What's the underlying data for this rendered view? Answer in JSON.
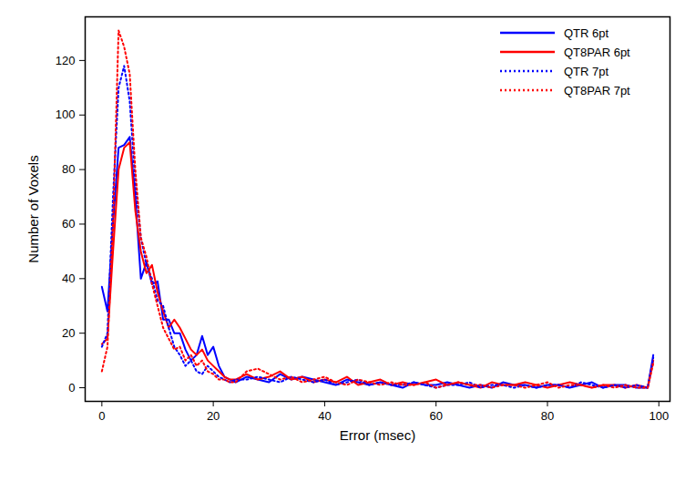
{
  "chart_data": {
    "type": "line",
    "x_label": "Error (msec)",
    "y_label": "Number of Voxels",
    "x": [
      0,
      1,
      2,
      3,
      4,
      5,
      6,
      7,
      8,
      9,
      10,
      11,
      12,
      13,
      14,
      15,
      16,
      17,
      18,
      19,
      20,
      21,
      22,
      23,
      24,
      26,
      28,
      30,
      32,
      34,
      36,
      38,
      40,
      42,
      44,
      46,
      48,
      50,
      52,
      54,
      56,
      58,
      60,
      62,
      64,
      66,
      68,
      70,
      72,
      74,
      76,
      78,
      80,
      82,
      84,
      86,
      88,
      90,
      92,
      94,
      96,
      98,
      99
    ],
    "series": [
      {
        "name": "QTR 6pt",
        "color": "#0000ff",
        "line_style": "solid",
        "values": [
          37,
          28,
          60,
          88,
          89,
          92,
          70,
          40,
          46,
          38,
          39,
          25,
          25,
          20,
          20,
          14,
          10,
          12,
          19,
          12,
          15,
          8,
          4,
          3,
          2,
          4,
          3,
          2,
          5,
          3,
          4,
          3,
          2,
          1,
          3,
          2,
          1,
          2,
          1,
          0,
          2,
          1,
          1,
          2,
          1,
          0,
          1,
          0,
          2,
          1,
          1,
          0,
          1,
          1,
          0,
          1,
          2,
          0,
          1,
          1,
          0,
          0,
          12
        ]
      },
      {
        "name": "QT8PAR 6pt",
        "color": "#ff0000",
        "line_style": "solid",
        "values": [
          16,
          18,
          50,
          80,
          88,
          90,
          65,
          50,
          42,
          45,
          35,
          28,
          22,
          25,
          22,
          18,
          14,
          12,
          14,
          10,
          8,
          6,
          4,
          3,
          3,
          5,
          3,
          4,
          6,
          3,
          4,
          2,
          3,
          2,
          4,
          1,
          2,
          3,
          1,
          2,
          1,
          2,
          3,
          1,
          2,
          1,
          0,
          2,
          1,
          1,
          2,
          1,
          0,
          1,
          2,
          1,
          0,
          1,
          1,
          0,
          1,
          0,
          10
        ]
      },
      {
        "name": "QTR 7pt",
        "color": "#0000ff",
        "line_style": "dotted",
        "values": [
          15,
          20,
          70,
          110,
          118,
          105,
          75,
          55,
          45,
          40,
          32,
          30,
          22,
          15,
          12,
          8,
          10,
          6,
          5,
          8,
          6,
          4,
          3,
          2,
          3,
          3,
          4,
          3,
          2,
          4,
          3,
          2,
          3,
          1,
          2,
          3,
          1,
          2,
          1,
          1,
          2,
          1,
          0,
          1,
          1,
          2,
          0,
          1,
          1,
          0,
          1,
          0,
          1,
          1,
          0,
          2,
          1,
          0,
          1,
          0,
          1,
          0,
          11
        ]
      },
      {
        "name": "QT8PAR 7pt",
        "color": "#ff0000",
        "line_style": "dotted",
        "values": [
          6,
          15,
          60,
          131,
          125,
          115,
          80,
          55,
          48,
          38,
          30,
          22,
          18,
          14,
          15,
          10,
          12,
          8,
          10,
          6,
          5,
          3,
          3,
          2,
          2,
          6,
          7,
          5,
          3,
          4,
          2,
          3,
          4,
          2,
          1,
          3,
          2,
          1,
          2,
          1,
          1,
          2,
          0,
          1,
          2,
          1,
          1,
          0,
          1,
          1,
          0,
          1,
          2,
          0,
          1,
          1,
          0,
          1,
          0,
          1,
          0,
          0,
          9
        ]
      }
    ],
    "xlim": [
      -3,
      102
    ],
    "ylim": [
      -5,
      136
    ],
    "xticks": [
      0,
      20,
      40,
      60,
      80,
      100
    ],
    "yticks": [
      0,
      20,
      40,
      60,
      80,
      100,
      120
    ],
    "grid": false,
    "legend": "upper right"
  }
}
